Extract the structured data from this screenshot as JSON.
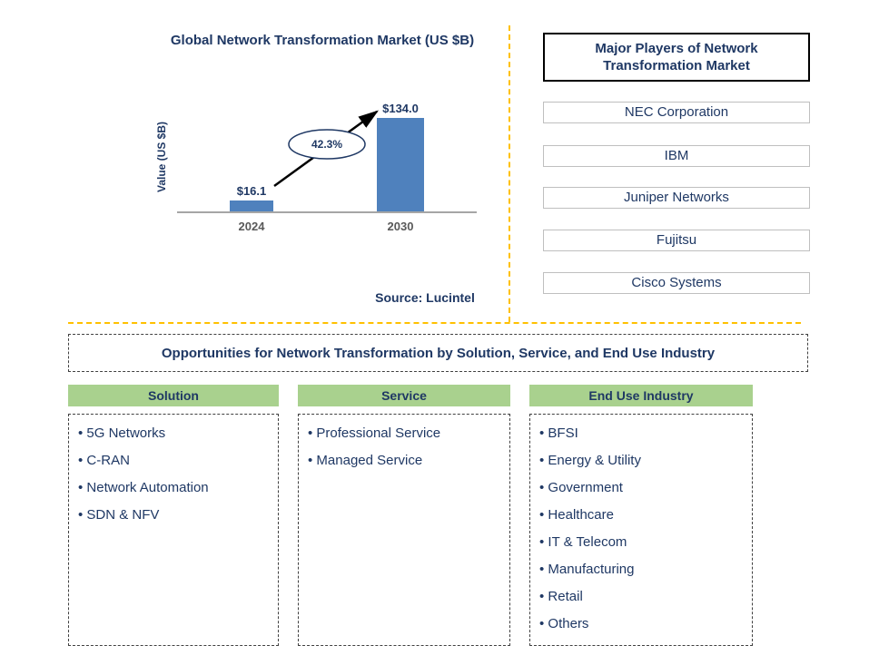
{
  "colors": {
    "navy_text": "#1F3864",
    "bar_blue": "#4F81BD",
    "header_green": "#A9D18E",
    "divider_orange": "#FFC000"
  },
  "chart": {
    "source": "Source: Lucintel"
  },
  "chart_data": {
    "type": "bar",
    "title": "Global Network Transformation Market (US $B)",
    "categories": [
      "2024",
      "2030"
    ],
    "values": [
      16.1,
      134.0
    ],
    "value_labels": [
      "$16.1",
      "$134.0"
    ],
    "xlabel": "",
    "ylabel": "Value (US $B)",
    "ylim": [
      0,
      140
    ],
    "grid": false,
    "legend": false,
    "annotation": "42.3%"
  },
  "major_players": {
    "title": "Major Players of Network Transformation Market",
    "items": [
      "NEC Corporation",
      "IBM",
      "Juniper Networks",
      "Fujitsu",
      "Cisco Systems"
    ]
  },
  "opportunities_banner": {
    "title": "Opportunities for Network Transformation by Solution, Service, and End Use Industry"
  },
  "columns": [
    {
      "header": "Solution",
      "items": [
        "5G Networks",
        "C-RAN",
        "Network Automation",
        "SDN & NFV"
      ]
    },
    {
      "header": "Service",
      "items": [
        "Professional Service",
        "Managed Service"
      ]
    },
    {
      "header": "End Use Industry",
      "items": [
        "BFSI",
        "Energy & Utility",
        "Government",
        "Healthcare",
        "IT & Telecom",
        "Manufacturing",
        "Retail",
        "Others"
      ]
    }
  ]
}
